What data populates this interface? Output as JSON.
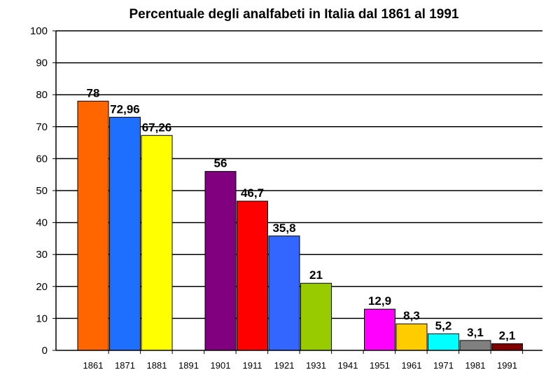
{
  "chart_data": {
    "type": "bar",
    "title": "Percentuale degli analfabeti in Italia dal 1861 al 1991",
    "xlabel": "",
    "ylabel": "",
    "ylim": [
      0,
      100
    ],
    "yticks": [
      0,
      10,
      20,
      30,
      40,
      50,
      60,
      70,
      80,
      90,
      100
    ],
    "grid": true,
    "legend": "none",
    "categories": [
      "1861",
      "1871",
      "1881",
      "1891",
      "1901",
      "1911",
      "1921",
      "1931",
      "1941",
      "1951",
      "1961",
      "1971",
      "1981",
      "1991"
    ],
    "values": [
      78,
      72.96,
      67.26,
      null,
      56,
      46.7,
      35.8,
      21,
      null,
      12.9,
      8.3,
      5.2,
      3.1,
      2.1
    ],
    "value_labels": [
      "78",
      "72,96",
      "67,26",
      "",
      "56",
      "46,7",
      "35,8",
      "21",
      "",
      "12,9",
      "8,3",
      "5,2",
      "3,1",
      "2,1"
    ],
    "colors": [
      "#ff6600",
      "#1f6fff",
      "#ffff00",
      "",
      "#800080",
      "#ff0000",
      "#3366ff",
      "#99cc00",
      "",
      "#ff00ff",
      "#ffcc00",
      "#00ffff",
      "#808080",
      "#800000"
    ]
  }
}
